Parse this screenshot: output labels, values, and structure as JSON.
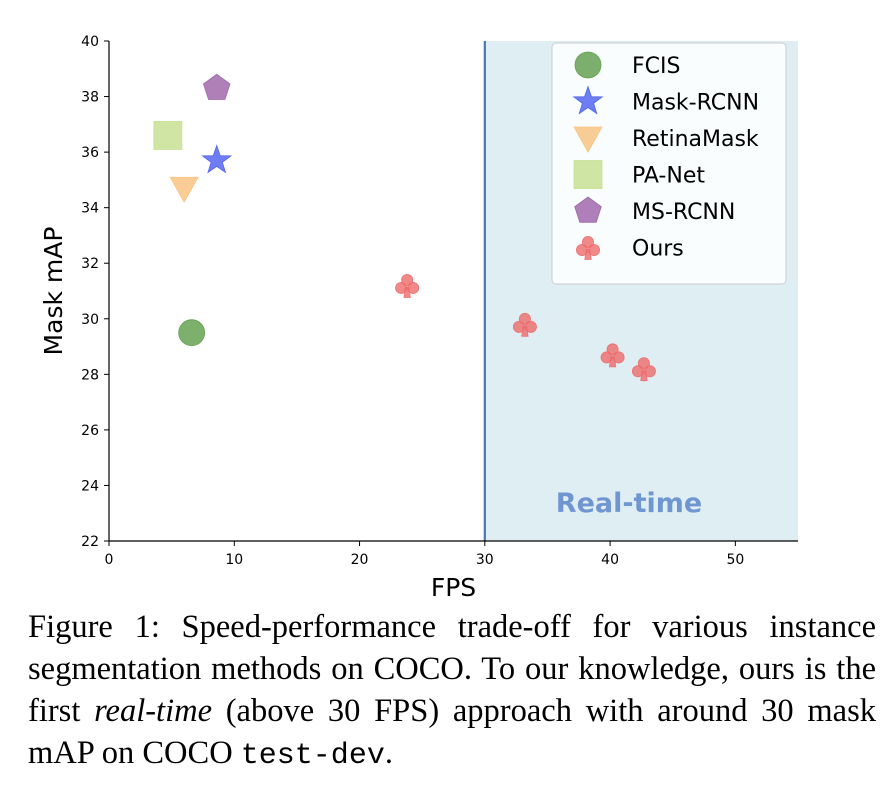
{
  "chart_data": {
    "type": "scatter",
    "xlabel": "FPS",
    "ylabel": "Mask mAP",
    "xlim": [
      0,
      55
    ],
    "ylim": [
      22,
      40
    ],
    "xticks": [
      0,
      10,
      20,
      30,
      40,
      50
    ],
    "yticks": [
      22,
      24,
      26,
      28,
      30,
      32,
      34,
      36,
      38,
      40
    ],
    "realtime_threshold": 30,
    "region_label": "Real-time",
    "region_color": "#dfeef3",
    "threshold_line_color": "#4a76b0",
    "region_label_color": "#7096d2",
    "legend_position": "top-right",
    "series": [
      {
        "name": "FCIS",
        "marker": "circle",
        "color": "#5d9b48",
        "points": [
          [
            6.6,
            29.5
          ]
        ]
      },
      {
        "name": "Mask-RCNN",
        "marker": "star",
        "color": "#4a5cf0",
        "points": [
          [
            8.6,
            35.7
          ]
        ]
      },
      {
        "name": "RetinaMask",
        "marker": "triangle-down",
        "color": "#f7c07a",
        "points": [
          [
            6.0,
            34.7
          ]
        ]
      },
      {
        "name": "PA-Net",
        "marker": "square",
        "color": "#c4df8c",
        "points": [
          [
            4.7,
            36.6
          ]
        ]
      },
      {
        "name": "MS-RCNN",
        "marker": "pentagon",
        "color": "#9b5fa6",
        "points": [
          [
            8.6,
            38.3
          ]
        ]
      },
      {
        "name": "Ours",
        "marker": "club",
        "color": "#ee6c6c",
        "points": [
          [
            23.8,
            31.2
          ],
          [
            33.2,
            29.8
          ],
          [
            40.2,
            28.7
          ],
          [
            42.7,
            28.2
          ]
        ]
      }
    ]
  },
  "caption": {
    "part1": "Figure 1: Speed-performance trade-off for various instance segmentation methods on COCO. To our knowledge, ours is the first ",
    "emph": "real-time",
    "part2": " (above 30 FPS) approach with around 30 mask mAP on COCO ",
    "code": "test-dev",
    "part3": "."
  }
}
